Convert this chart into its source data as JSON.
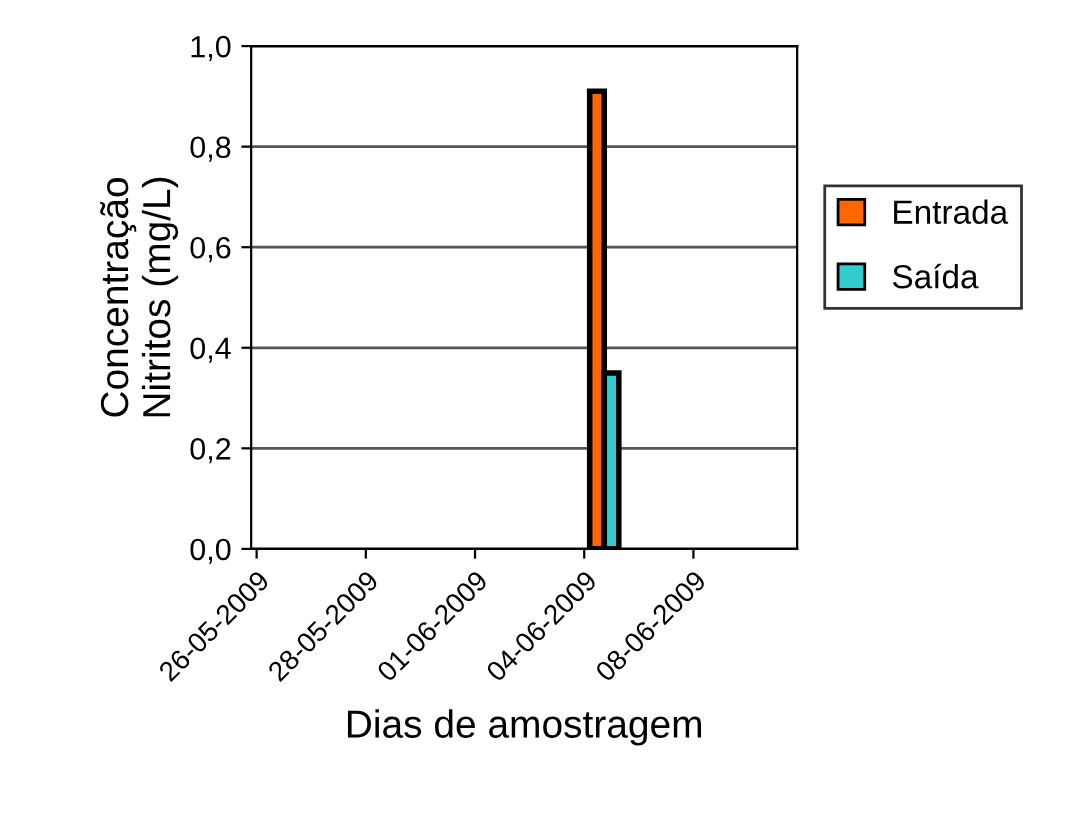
{
  "chart_data": {
    "type": "bar",
    "xlabel": "Dias de amostragem",
    "ylabel": "Concentração\nNitritos (mg/L)",
    "categories": [
      "26-05-2009",
      "28-05-2009",
      "01-06-2009",
      "04-06-2009",
      "08-06-2009"
    ],
    "series": [
      {
        "name": "Entrada",
        "color": "#ff6600",
        "values": [
          0,
          0,
          0,
          0.91,
          0
        ]
      },
      {
        "name": "Saída",
        "color": "#33cccc",
        "values": [
          0,
          0,
          0,
          0.35,
          0
        ]
      }
    ],
    "ylim": [
      0,
      1
    ],
    "yticks": [
      {
        "value": 0,
        "label": "0,0"
      },
      {
        "value": 0.2,
        "label": "0,2"
      },
      {
        "value": 0.4,
        "label": "0,4"
      },
      {
        "value": 0.6,
        "label": "0,6"
      },
      {
        "value": 0.8,
        "label": "0,8"
      },
      {
        "value": 1,
        "label": "1,0"
      }
    ],
    "grid": "y",
    "legend": "right"
  }
}
